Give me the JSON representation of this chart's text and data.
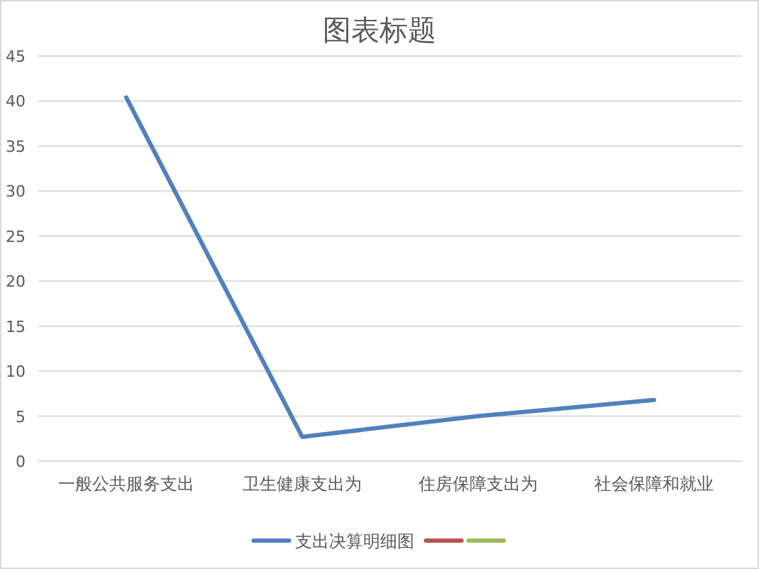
{
  "chart_data": {
    "type": "line",
    "title": "图表标题",
    "categories": [
      "一般公共服务支出",
      "卫生健康支出为",
      "住房保障支出为",
      "社会保障和就业"
    ],
    "series": [
      {
        "name": "支出决算明细图",
        "color": "#4f81bd",
        "values": [
          40.4,
          2.7,
          5.0,
          6.8
        ]
      },
      {
        "color": "#c0504d",
        "values": [
          null,
          null,
          null,
          null
        ]
      },
      {
        "color": "#9bbb59",
        "values": [
          null,
          null,
          null,
          null
        ]
      }
    ],
    "ylim": [
      0,
      45
    ],
    "yticks": [
      0,
      5,
      10,
      15,
      20,
      25,
      30,
      35,
      40,
      45
    ],
    "grid": "y",
    "legend": "bottom"
  }
}
